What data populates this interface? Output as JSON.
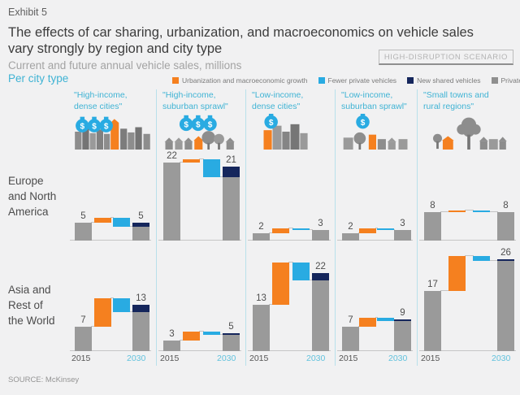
{
  "exhibit_label": "Exhibit 5",
  "title": "The effects of car sharing, urbanization, and macroeconomics on vehicle sales vary strongly by region and city type",
  "subtitle": "Current and future annual vehicle sales, millions",
  "scenario_badge": "HIGH-DISRUPTION SCENARIO",
  "per_city_type_label": "Per city type",
  "source": "SOURCE: McKinsey",
  "colors": {
    "growth_orange": "#f5801f",
    "fewer_blue": "#29abe2",
    "shared_navy": "#15265c",
    "bar_gray": "#9a9a9a",
    "cyan_text": "#3fb3d4",
    "divider_cyan": "#b9e0eb"
  },
  "legend": [
    {
      "label": "Urbanization and macroeconomic growth",
      "color": "#f5801f"
    },
    {
      "label": "Fewer private vehicles",
      "color": "#29abe2"
    },
    {
      "label": "New shared vehicles",
      "color": "#15265c"
    },
    {
      "label": "Private vehicles",
      "color": "#8f8f8f"
    }
  ],
  "chart_data": {
    "type": "bar",
    "subtype": "waterfall",
    "unit": "millions of vehicles per year",
    "years": [
      "2015",
      "2030"
    ],
    "series_meaning": [
      "2015 private vehicles (gray)",
      "urbanization and macroeconomic growth (orange, +)",
      "fewer private vehicles (light blue, -)",
      "2030 = private vehicles (gray) + new shared vehicles (navy)"
    ],
    "city_types": [
      {
        "label": "\"High-income,\ndense cities\"",
        "icon": "money-bags-3-dense-city-icon"
      },
      {
        "label": "\"High-income,\nsuburban sprawl\"",
        "icon": "money-bags-3-suburb-icon"
      },
      {
        "label": "\"Low-income,\ndense cities\"",
        "icon": "money-bag-1-dense-city-icon"
      },
      {
        "label": "\"Low-income,\nsuburban sprawl\"",
        "icon": "money-bag-1-suburb-icon"
      },
      {
        "label": "\"Small towns and\nrural regions\"",
        "icon": "small-town-trees-icon"
      }
    ],
    "rows": [
      {
        "label": "Europe\nand North\nAmerica",
        "charts": [
          {
            "y2015": 5,
            "growth_est": 1.5,
            "fewer_est": 2.5,
            "shared_est": 1,
            "y2030": 5
          },
          {
            "y2015": 22,
            "growth_est": 1,
            "fewer_est": 5,
            "shared_est": 3,
            "y2030": 21
          },
          {
            "y2015": 2,
            "growth_est": 1.5,
            "fewer_est": 0.5,
            "shared_est": 0,
            "y2030": 3
          },
          {
            "y2015": 2,
            "growth_est": 1.5,
            "fewer_est": 0.5,
            "shared_est": 0,
            "y2030": 3
          },
          {
            "y2015": 8,
            "growth_est": 0.4,
            "fewer_est": 0.4,
            "shared_est": 0,
            "y2030": 8
          }
        ]
      },
      {
        "label": "Asia and\nRest of\nthe World",
        "charts": [
          {
            "y2015": 7,
            "growth_est": 8,
            "fewer_est": 4,
            "shared_est": 2,
            "y2030": 13
          },
          {
            "y2015": 3,
            "growth_est": 2.5,
            "fewer_est": 1,
            "shared_est": 0.5,
            "y2030": 5
          },
          {
            "y2015": 13,
            "growth_est": 12,
            "fewer_est": 5,
            "shared_est": 2,
            "y2030": 22
          },
          {
            "y2015": 7,
            "growth_est": 2.5,
            "fewer_est": 1,
            "shared_est": 0.5,
            "y2030": 9
          },
          {
            "y2015": 17,
            "growth_est": 10,
            "fewer_est": 1.5,
            "shared_est": 0.5,
            "y2030": 26
          }
        ]
      }
    ]
  }
}
